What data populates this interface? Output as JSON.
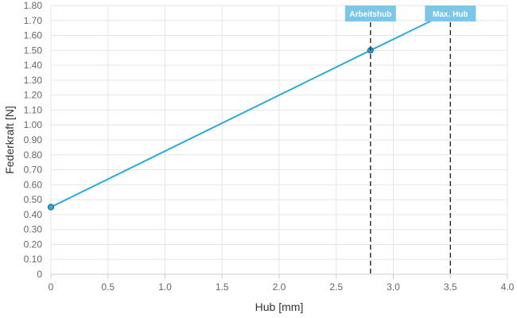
{
  "chart_data": {
    "type": "line",
    "xlabel": "Hub [mm]",
    "ylabel": "Federkraft [N]",
    "xlim": [
      0,
      4.0
    ],
    "ylim": [
      0,
      1.8
    ],
    "x_ticks": [
      "0",
      "0.5",
      "1.0",
      "1.5",
      "2.0",
      "2.5",
      "3.0",
      "3.5",
      "4.0"
    ],
    "x_tick_values": [
      0,
      0.5,
      1.0,
      1.5,
      2.0,
      2.5,
      3.0,
      3.5,
      4.0
    ],
    "y_ticks": [
      "0",
      "0.10",
      "0.20",
      "0.30",
      "0.40",
      "0.50",
      "0.60",
      "0.70",
      "0.80",
      "0.90",
      "1.00",
      "1.10",
      "1.20",
      "1.30",
      "1.40",
      "1.50",
      "1.60",
      "1.70",
      "1.80"
    ],
    "y_tick_values": [
      0,
      0.1,
      0.2,
      0.3,
      0.4,
      0.5,
      0.6,
      0.7,
      0.8,
      0.9,
      1.0,
      1.1,
      1.2,
      1.3,
      1.4,
      1.5,
      1.6,
      1.7,
      1.8
    ],
    "grid": true,
    "series": [
      {
        "color": "#2fa9d9",
        "points": [
          {
            "x": 0,
            "y": 0.45
          },
          {
            "x": 2.8,
            "y": 1.5
          },
          {
            "x": 3.5,
            "y": 1.76
          }
        ]
      }
    ],
    "markers": [
      {
        "label": "Arbeitshub",
        "x": 2.8
      },
      {
        "label": "Max. Hub",
        "x": 3.5
      }
    ]
  }
}
